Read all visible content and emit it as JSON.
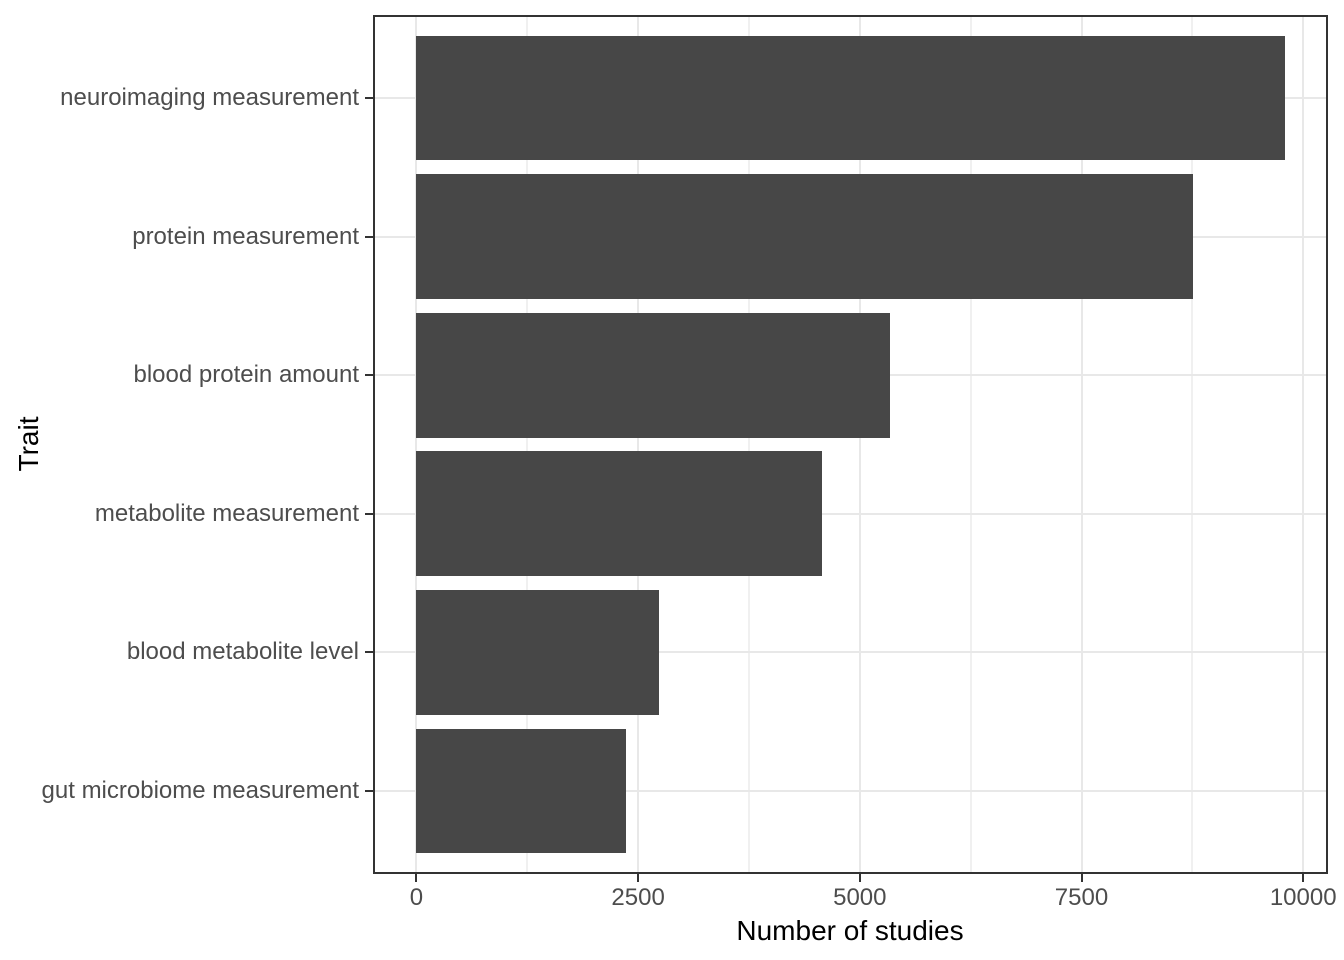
{
  "chart_data": {
    "type": "bar",
    "orientation": "horizontal",
    "title": "",
    "xlabel": "Number of studies",
    "ylabel": "Trait",
    "categories": [
      "neuroimaging measurement",
      "protein measurement",
      "blood protein amount",
      "metabolite measurement",
      "blood metabolite level",
      "gut microbiome measurement"
    ],
    "values": [
      9790,
      8760,
      5340,
      4575,
      2740,
      2360
    ],
    "x_ticks": [
      0,
      2500,
      5000,
      7500,
      10000
    ],
    "x_tick_labels": [
      "0",
      "2500",
      "5000",
      "7500",
      "10000"
    ],
    "x_minor_ticks": [
      1250,
      3750,
      6250,
      8750
    ],
    "xlim": [
      0,
      10000
    ],
    "grid": "major+minor vertical, major horizontal",
    "legend": "none",
    "bar_width_fraction": 0.9,
    "colors": {
      "bar_fill": "#474747",
      "major_grid": "#E8E8E8",
      "minor_grid": "#F0F0F0",
      "panel_border": "#333333",
      "tick_mark": "#333333",
      "tick_label_text": "#4D4D4D",
      "axis_title_text": "#000000",
      "background": "#FFFFFF"
    }
  }
}
